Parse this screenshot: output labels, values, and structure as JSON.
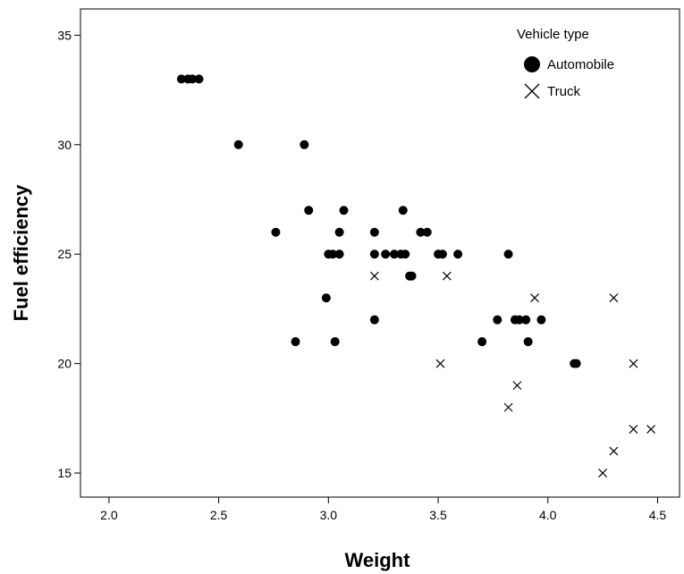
{
  "chart_data": {
    "type": "scatter",
    "title": "",
    "xlabel": "Weight",
    "ylabel": "Fuel efficiency",
    "xlim": [
      1.87,
      4.6
    ],
    "ylim": [
      13.9,
      36.2
    ],
    "xticks": [
      2.0,
      2.5,
      3.0,
      3.5,
      4.0,
      4.5
    ],
    "xtick_labels": [
      "2.0",
      "2.5",
      "3.0",
      "3.5",
      "4.0",
      "4.5"
    ],
    "yticks": [
      15,
      20,
      25,
      30,
      35
    ],
    "ytick_labels": [
      "15",
      "20",
      "25",
      "30",
      "35"
    ],
    "grid": false,
    "legend": {
      "title": "Vehicle type",
      "placement": "top-right"
    },
    "series": [
      {
        "name": "Automobile",
        "marker": "circle",
        "color": "#000000",
        "points": [
          [
            2.33,
            33
          ],
          [
            2.36,
            33
          ],
          [
            2.38,
            33
          ],
          [
            2.41,
            33
          ],
          [
            2.59,
            30
          ],
          [
            2.89,
            30
          ],
          [
            2.91,
            27
          ],
          [
            3.07,
            27
          ],
          [
            3.34,
            27
          ],
          [
            2.76,
            26
          ],
          [
            3.05,
            26
          ],
          [
            3.21,
            26
          ],
          [
            3.42,
            26
          ],
          [
            3.45,
            26
          ],
          [
            3.0,
            25
          ],
          [
            3.02,
            25
          ],
          [
            3.05,
            25
          ],
          [
            3.21,
            25
          ],
          [
            3.26,
            25
          ],
          [
            3.3,
            25
          ],
          [
            3.33,
            25
          ],
          [
            3.35,
            25
          ],
          [
            3.5,
            25
          ],
          [
            3.52,
            25
          ],
          [
            3.59,
            25
          ],
          [
            3.82,
            25
          ],
          [
            3.37,
            24
          ],
          [
            3.38,
            24
          ],
          [
            2.99,
            23
          ],
          [
            3.21,
            22
          ],
          [
            3.77,
            22
          ],
          [
            3.85,
            22
          ],
          [
            3.87,
            22
          ],
          [
            3.9,
            22
          ],
          [
            3.97,
            22
          ],
          [
            2.85,
            21
          ],
          [
            3.03,
            21
          ],
          [
            3.7,
            21
          ],
          [
            3.91,
            21
          ],
          [
            4.12,
            20
          ],
          [
            4.13,
            20
          ]
        ]
      },
      {
        "name": "Truck",
        "marker": "x",
        "color": "#000000",
        "points": [
          [
            3.21,
            24
          ],
          [
            3.54,
            24
          ],
          [
            3.94,
            23
          ],
          [
            4.3,
            23
          ],
          [
            3.51,
            20
          ],
          [
            4.39,
            20
          ],
          [
            3.86,
            19
          ],
          [
            3.82,
            18
          ],
          [
            4.39,
            17
          ],
          [
            4.47,
            17
          ],
          [
            4.3,
            16
          ],
          [
            4.25,
            15
          ]
        ]
      }
    ]
  }
}
